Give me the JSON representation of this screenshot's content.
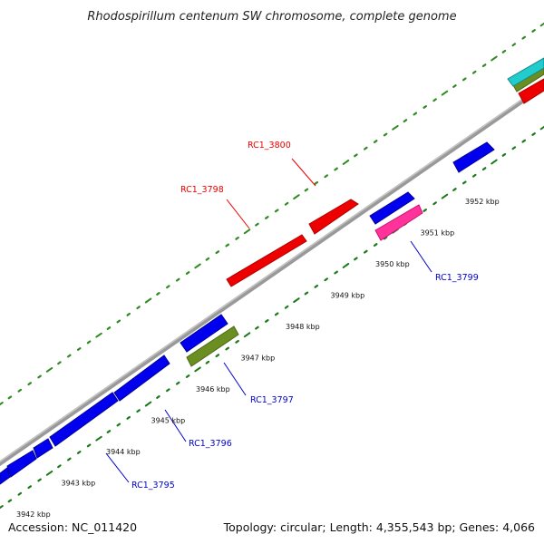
{
  "title": "Rhodospirillum centenum SW chromosome, complete genome",
  "footer": {
    "accession": "Accession: NC_011420",
    "summary": "Topology: circular; Length: 4,355,543 bp; Genes: 4,066"
  },
  "colors": {
    "backbone": "#8a8a8a",
    "forward_tick": "#2e8b20",
    "reverse_tick": "#1a7a1a",
    "red": "#ee0000",
    "blue": "#0000ee",
    "green": "#6b8e23",
    "pink": "#ff3399",
    "cyan": "#22cccc",
    "label_red": "#ee0000",
    "label_blue": "#0000cc"
  },
  "ticks": [
    "3942 kbp",
    "3943 kbp",
    "3944 kbp",
    "3945 kbp",
    "3946 kbp",
    "3947 kbp",
    "3948 kbp",
    "3949 kbp",
    "3950 kbp",
    "3951 kbp",
    "3952 kbp"
  ],
  "gene_labels": {
    "rc1_3800": "RC1_3800",
    "rc1_3798": "RC1_3798",
    "rc1_3799": "RC1_3799",
    "rc1_3797": "RC1_3797",
    "rc1_3796": "RC1_3796",
    "rc1_3795": "RC1_3795"
  }
}
